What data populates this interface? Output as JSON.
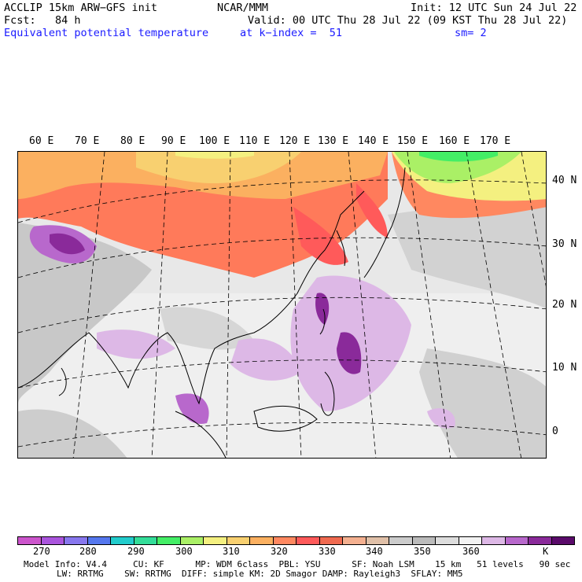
{
  "header": {
    "model": "ACCLIP 15km ARW−GFS init",
    "org": "NCAR/MMM",
    "init": "Init: 12 UTC Sun 24 Jul 22",
    "fcst": "Fcst:   84 h",
    "valid": "Valid: 00 UTC Thu 28 Jul 22 (09 KST Thu 28 Jul 22)",
    "field": "Equivalent potential temperature",
    "level": "at k−index =  51",
    "smooth": "sm= 2"
  },
  "lon_labels": [
    "60 E",
    "70 E",
    "80 E",
    "90 E",
    "100 E",
    "110 E",
    "120 E",
    "130 E",
    "140 E",
    "150 E",
    "160 E",
    "170 E"
  ],
  "lat_labels": [
    "40 N",
    "30 N",
    "20 N",
    "10 N",
    "0"
  ],
  "colorbar": {
    "colors": [
      "#cc55cc",
      "#aa55dd",
      "#8877ee",
      "#5577ee",
      "#22cccc",
      "#33dd99",
      "#44ee66",
      "#aaf066",
      "#f4f080",
      "#f8d070",
      "#fbb060",
      "#ff8860",
      "#ff5a5a",
      "#f06a50",
      "#f4b090",
      "#e0c0a8",
      "#cccccc",
      "#bbbbbb",
      "#dddddd",
      "#f2f2f2",
      "#ddb8e6",
      "#b868cc",
      "#8a2a9a",
      "#5a0a6a"
    ],
    "labels": [
      "270",
      "280",
      "290",
      "300",
      "310",
      "320",
      "330",
      "340",
      "350",
      "360"
    ],
    "unit": "K"
  },
  "model_info": {
    "line1": "Model Info: V4.4     CU: KF      MP: WDM 6class  PBL: YSU      SF: Noah LSM    15 km   51 levels   90 sec",
    "line2": "LW: RRTMG    SW: RRTMG  DIFF: simple KM: 2D Smagor DAMP: Rayleigh3  SFLAY: MM5"
  }
}
